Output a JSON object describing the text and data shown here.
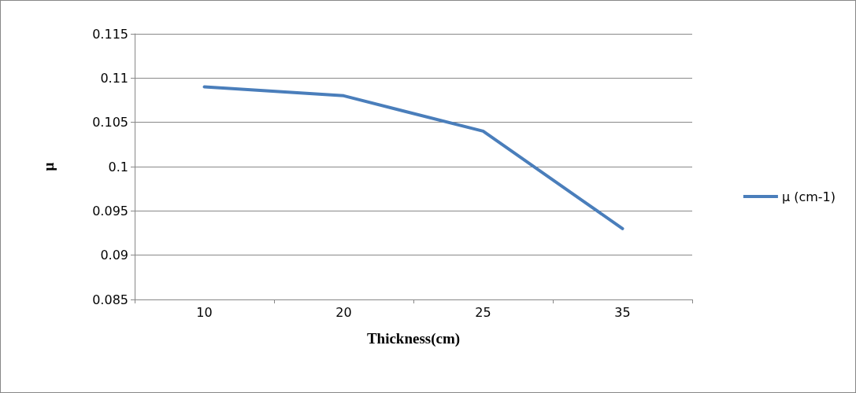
{
  "chart_data": {
    "type": "line",
    "xlabel": "Thickness(cm)",
    "ylabel": "μ",
    "categories": [
      "10",
      "20",
      "25",
      "35"
    ],
    "series": [
      {
        "name": "μ (cm-1)",
        "color": "#4a7ebb",
        "values": [
          0.109,
          0.108,
          0.104,
          0.093
        ]
      }
    ],
    "ylim": [
      0.085,
      0.115
    ],
    "yticks": [
      0.085,
      0.09,
      0.095,
      0.1,
      0.105,
      0.11,
      0.115
    ],
    "grid": "y",
    "legend": "right"
  }
}
